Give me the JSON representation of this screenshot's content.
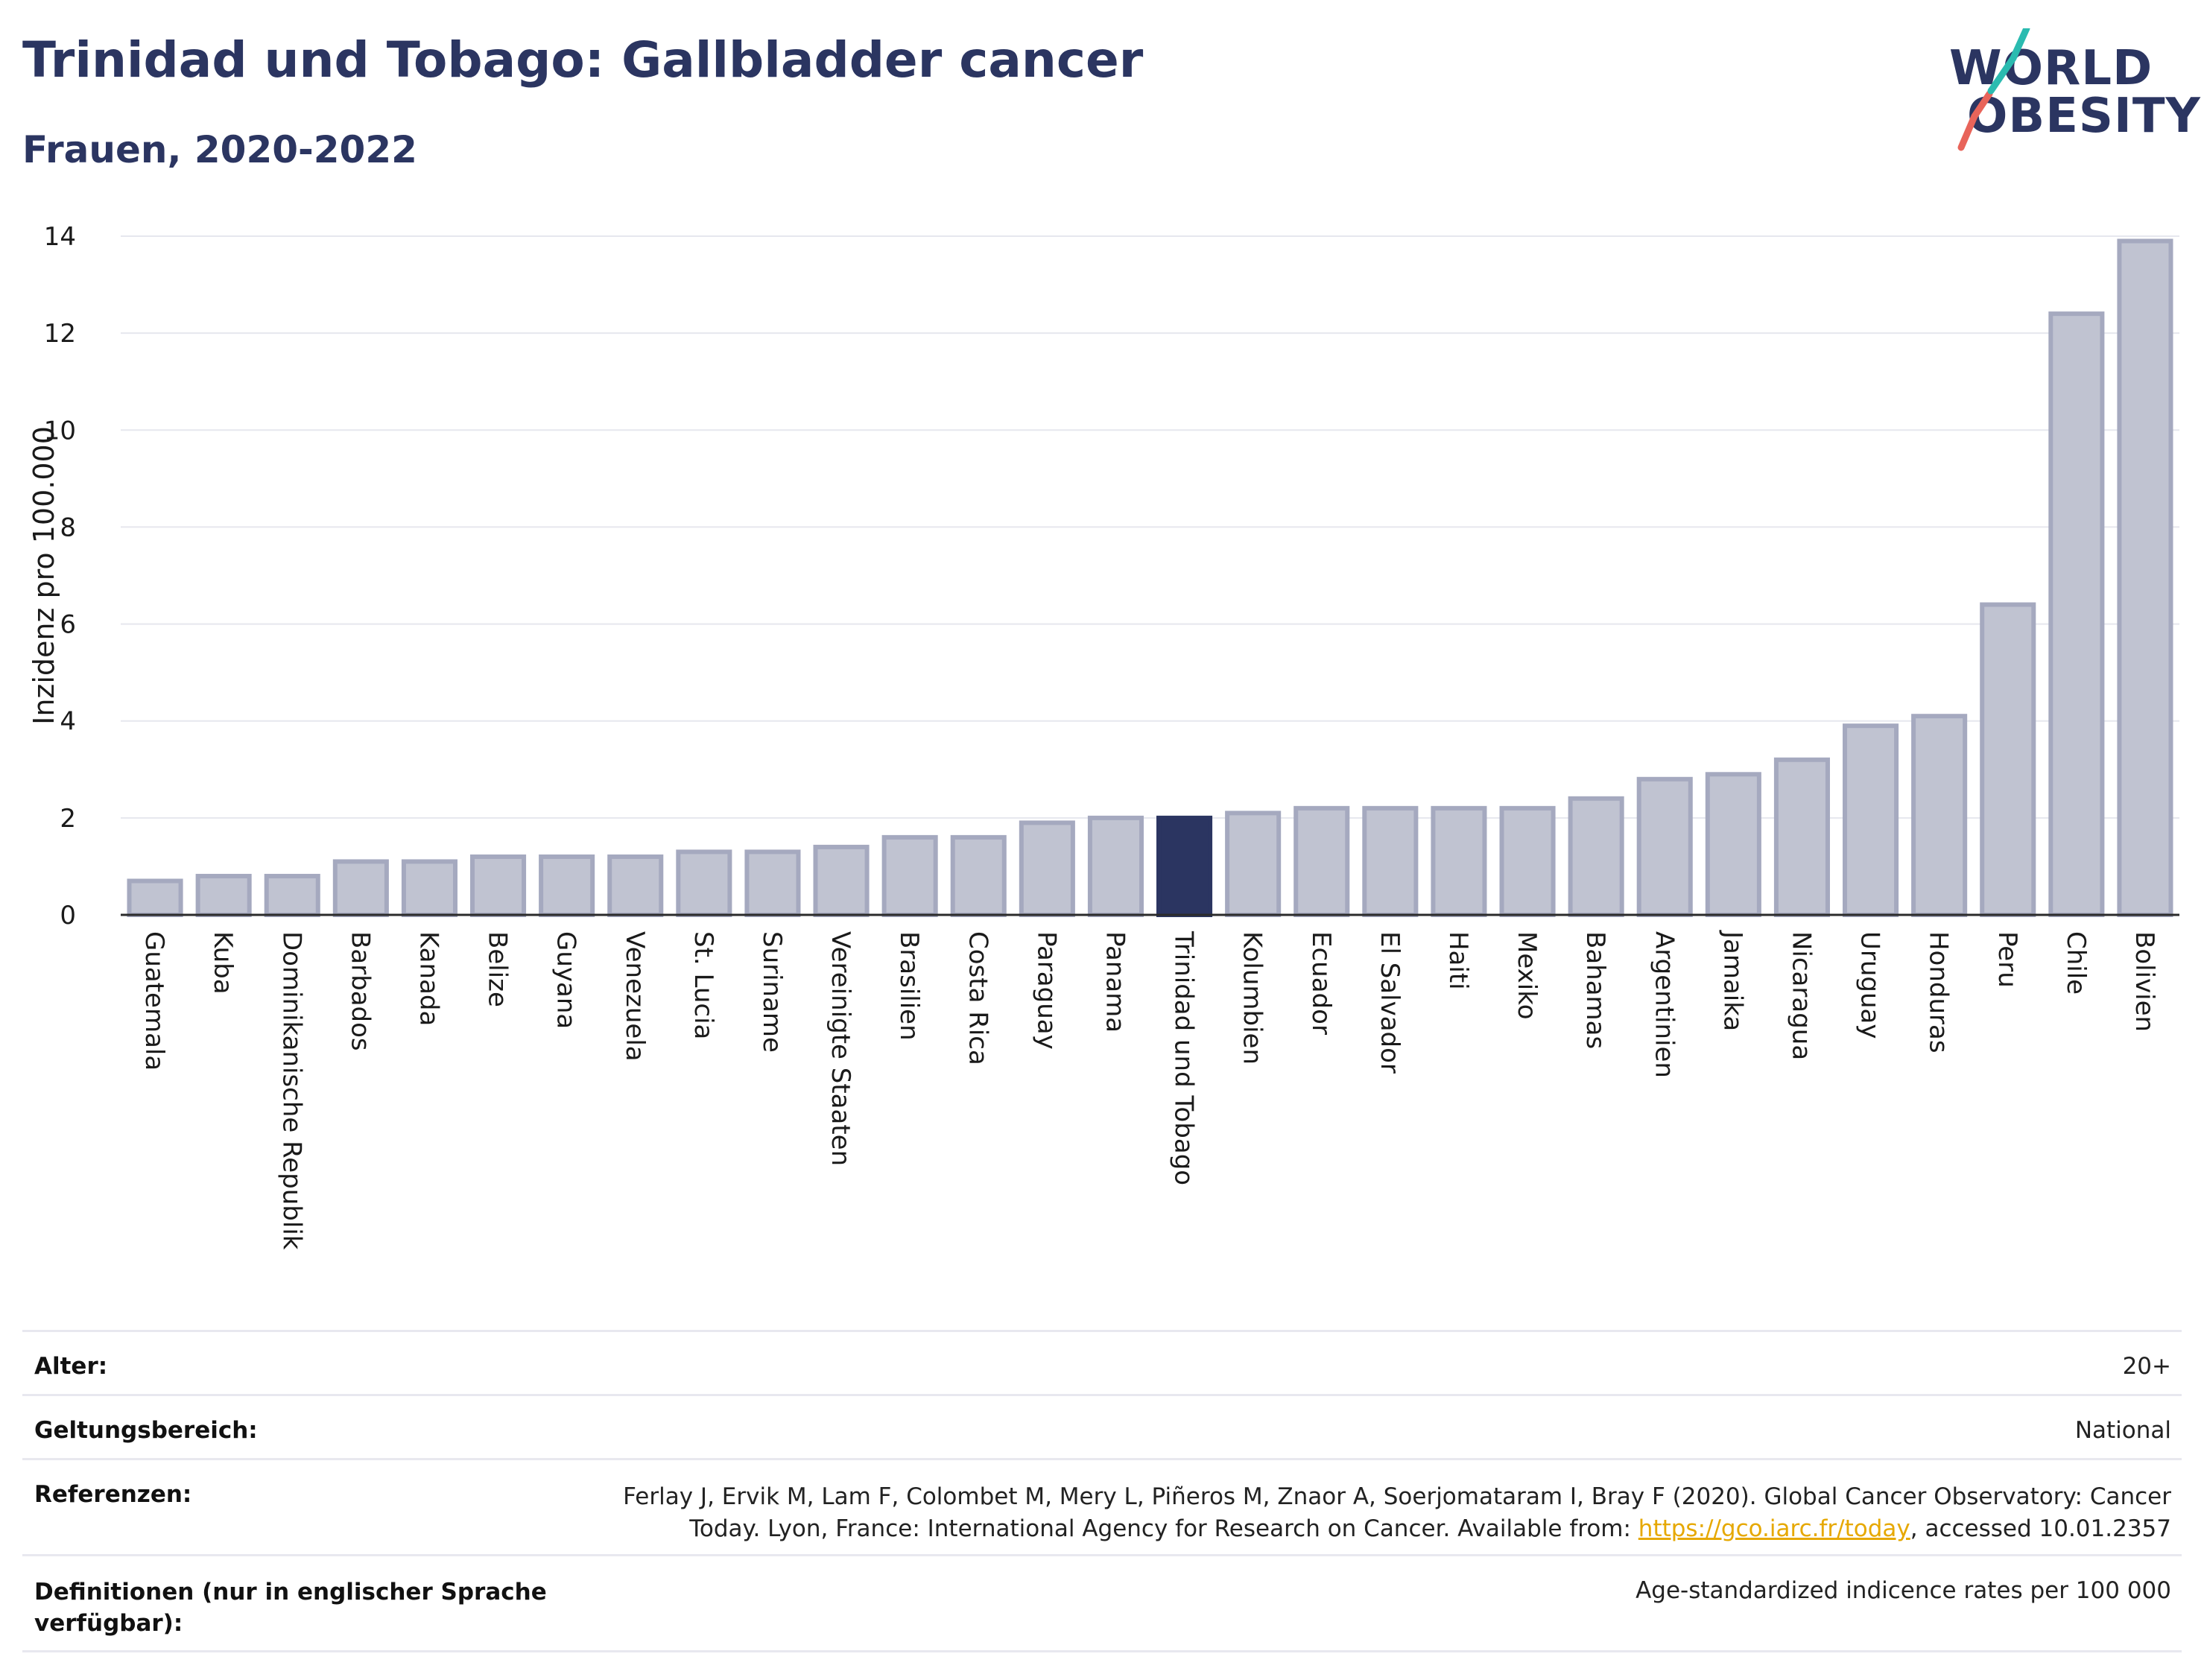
{
  "header": {
    "title": "Trinidad und Tobago: Gallbladder cancer",
    "subtitle": "Frauen, 2020-2022"
  },
  "logo": {
    "line1": "WORLD",
    "line2": "OBESITY"
  },
  "colors": {
    "highlight": "#2b3561",
    "bar_fill": "#c0c3d1",
    "bar_stroke": "#a5a9bf",
    "title": "#2b3561",
    "logo_teal": "#2bbbb0",
    "logo_red": "#e8645a",
    "link": "#e6a800"
  },
  "chart_data": {
    "type": "bar",
    "ylabel": "Inzidenz pro 100.000",
    "ylim": [
      0,
      14
    ],
    "yticks": [
      0,
      2,
      4,
      6,
      8,
      10,
      12,
      14
    ],
    "grid": true,
    "highlight": "Trinidad und Tobago",
    "categories": [
      "Guatemala",
      "Kuba",
      "Dominikanische Republik",
      "Barbados",
      "Kanada",
      "Belize",
      "Guyana",
      "Venezuela",
      "St. Lucia",
      "Suriname",
      "Vereinigte Staaten",
      "Brasilien",
      "Costa Rica",
      "Paraguay",
      "Panama",
      "Trinidad und Tobago",
      "Kolumbien",
      "Ecuador",
      "El Salvador",
      "Haiti",
      "Mexiko",
      "Bahamas",
      "Argentinien",
      "Jamaika",
      "Nicaragua",
      "Uruguay",
      "Honduras",
      "Peru",
      "Chile",
      "Bolivien"
    ],
    "values": [
      0.7,
      0.8,
      0.8,
      1.1,
      1.1,
      1.2,
      1.2,
      1.2,
      1.3,
      1.3,
      1.4,
      1.6,
      1.6,
      1.9,
      2.0,
      2.0,
      2.1,
      2.2,
      2.2,
      2.2,
      2.2,
      2.4,
      2.8,
      2.9,
      3.2,
      3.9,
      4.1,
      6.4,
      12.4,
      13.9
    ]
  },
  "footer": {
    "age_label": "Alter:",
    "age_value": "20+",
    "scope_label": "Geltungsbereich:",
    "scope_value": "National",
    "ref_label": "Referenzen:",
    "ref_text_1": "Ferlay J, Ervik M, Lam F, Colombet M, Mery L, Piñeros M, Znaor A, Soerjomataram I, Bray F (2020). Global Cancer Observatory: Cancer Today. Lyon, France: International Agency for Research on Cancer. Available from: ",
    "ref_link": "https://gco.iarc.fr/today",
    "ref_text_2": ", accessed 10.01.2357",
    "def_label": "Definitionen (nur in englischer Sprache verfügbar):",
    "def_value": "Age-standardized indicence rates per 100 000"
  }
}
